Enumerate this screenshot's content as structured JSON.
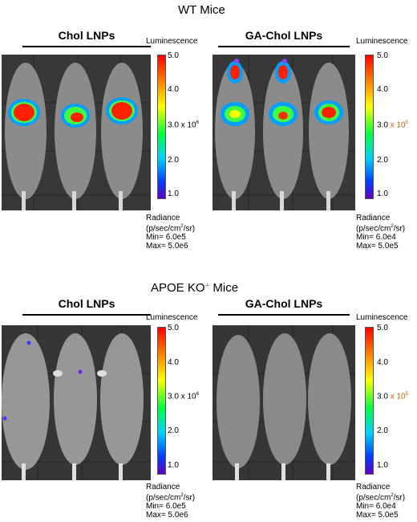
{
  "wt": {
    "title": "WT Mice",
    "left": {
      "group": "Chol LNPs",
      "luminescence": "Luminescence",
      "ticks": [
        "5.0",
        "4.0",
        "3.0",
        "2.0",
        "1.0"
      ],
      "scale_mult": "x 10",
      "scale_exp": "6",
      "radiance_line1": "Radiance",
      "radiance_unit": "(p/sec/cm",
      "radiance_unit_sup": "2",
      "radiance_unit_end": "/sr)",
      "min": "Min= 6.0e5",
      "max": "Max= 5.0e6"
    },
    "right": {
      "group": "GA-Chol LNPs",
      "luminescence": "Luminescence",
      "ticks": [
        "5.0",
        "4.0",
        "3.0",
        "2.0",
        "1.0"
      ],
      "scale_mult": "x 10",
      "scale_exp": "5",
      "radiance_line1": "Radiance",
      "radiance_unit": "(p/sec/cm",
      "radiance_unit_sup": "2",
      "radiance_unit_end": "/sr)",
      "min": "Min= 6.0e4",
      "max": "Max= 5.0e5"
    }
  },
  "apoe": {
    "title_main": "APOE KO",
    "title_sup": "-/-",
    "title_end": " Mice",
    "left": {
      "group": "Chol LNPs",
      "luminescence": "Luminescence",
      "ticks": [
        "5.0",
        "4.0",
        "3.0",
        "2.0",
        "1.0"
      ],
      "scale_mult": "x 10",
      "scale_exp": "6",
      "radiance_line1": "Radiance",
      "radiance_unit": "(p/sec/cm",
      "radiance_unit_sup": "2",
      "radiance_unit_end": "/sr)",
      "min": "Min= 6.0e5",
      "max": "Max= 5.0e6"
    },
    "right": {
      "group": "GA-Chol LNPs",
      "luminescence": "Luminescence",
      "ticks": [
        "5.0",
        "4.0",
        "3.0",
        "2.0",
        "1.0"
      ],
      "scale_mult": "x 10",
      "scale_exp": "5",
      "radiance_line1": "Radiance",
      "radiance_unit": "(p/sec/cm",
      "radiance_unit_sup": "2",
      "radiance_unit_end": "/sr)",
      "min": "Min= 6.0e4",
      "max": "Max= 5.0e5"
    }
  },
  "colors": {
    "photo_background": "#3a3a3a",
    "accent_exponent": "#d06000"
  }
}
